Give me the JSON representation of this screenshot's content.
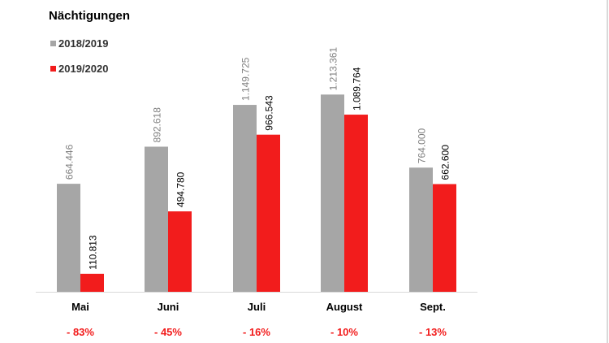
{
  "chart_data": {
    "type": "bar",
    "title": "Nächtigungen",
    "categories": [
      "Mai",
      "Juni",
      "Juli",
      "August",
      "Sept."
    ],
    "series": [
      {
        "name": "2018/2019",
        "color": "#a6a6a6",
        "values": [
          664446,
          892618,
          1149725,
          1213361,
          764000
        ],
        "labels": [
          "664.446",
          "892.618",
          "1.149.725",
          "1.213.361",
          "764.000"
        ]
      },
      {
        "name": "2019/2020",
        "color": "#f21c1c",
        "values": [
          110813,
          494780,
          966543,
          1089764,
          662600
        ],
        "labels": [
          "110.813",
          "494.780",
          "966.543",
          "1.089.764",
          "662.600"
        ]
      }
    ],
    "changes": [
      "- 83%",
      "- 45%",
      "- 16%",
      "- 10%",
      "- 13%"
    ],
    "change_color": "#f21c1c",
    "ylim": [
      0,
      1500000
    ],
    "grid": false,
    "legend_position": "top-left"
  }
}
